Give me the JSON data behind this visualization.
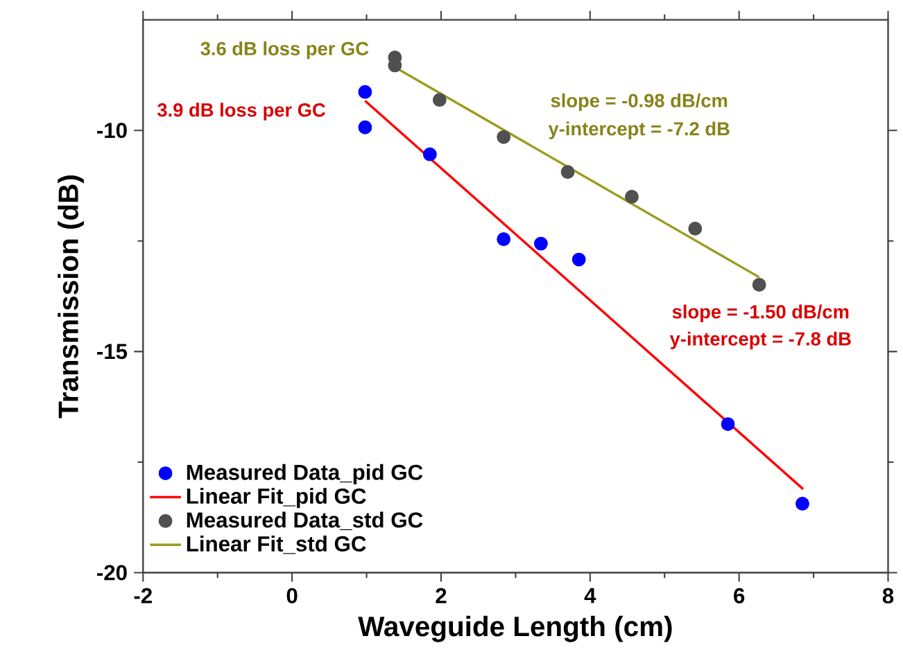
{
  "chart_data": {
    "type": "scatter",
    "xlabel": "Waveguide Length (cm)",
    "ylabel": "Transmission (dB)",
    "xlim": [
      -2,
      8
    ],
    "ylim": [
      -20,
      -7.5
    ],
    "xticks": [
      -2,
      0,
      2,
      4,
      6,
      8
    ],
    "yticks": [
      -20,
      -15,
      -10
    ],
    "legend": "bottom left",
    "line_style": "solid",
    "series": [
      {
        "name": "Measured Data_pid GC",
        "marker": "circle",
        "color": "#0000ff",
        "x": [
          0.98,
          0.98,
          1.85,
          2.84,
          3.34,
          3.85,
          5.85,
          6.85
        ],
        "values": [
          -9.13,
          -9.93,
          -10.54,
          -12.46,
          -12.56,
          -12.92,
          -16.64,
          -18.44
        ]
      },
      {
        "name": "Linear Fit_pid GC",
        "type": "line",
        "marker": "none",
        "color": "#ff0000",
        "x": [
          0.98,
          6.86
        ],
        "values": [
          -9.33,
          -18.11
        ]
      },
      {
        "name": "Measured Data_std GC",
        "marker": "circle",
        "color": "#505050",
        "x": [
          1.38,
          1.38,
          1.98,
          2.84,
          3.7,
          4.56,
          5.41,
          6.27
        ],
        "values": [
          -8.35,
          -8.53,
          -9.31,
          -10.15,
          -10.94,
          -11.5,
          -12.22,
          -13.49
        ]
      },
      {
        "name": "Linear Fit_std GC",
        "type": "line",
        "marker": "none",
        "color": "#9c9b1e",
        "x": [
          1.38,
          6.27
        ],
        "values": [
          -8.57,
          -13.32
        ]
      }
    ],
    "annotations": [
      "3.6 dB loss per GC",
      "3.9 dB loss per GC",
      "slope = -0.98 dB/cm",
      "y-intercept = -7.2 dB",
      "slope = -1.50 dB/cm",
      "y-intercept = -7.8 dB"
    ]
  }
}
